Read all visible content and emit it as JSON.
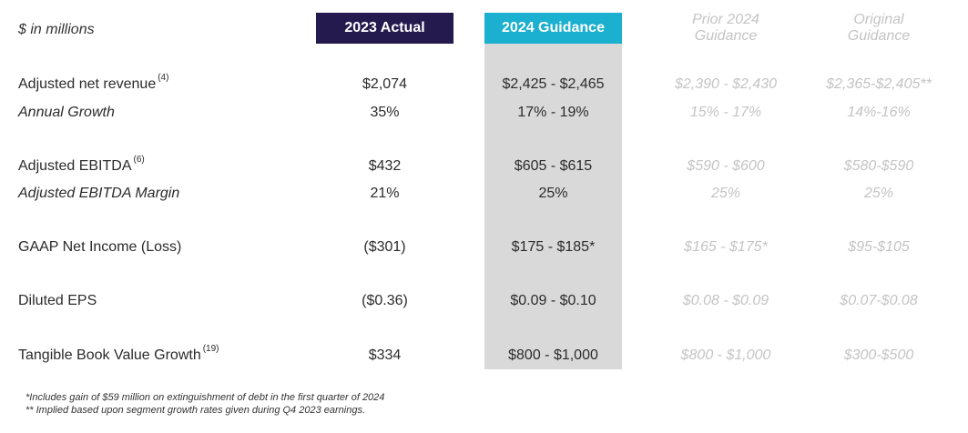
{
  "units_label": "$ in millions",
  "headers": {
    "actual": "2023 Actual",
    "guidance": "2024 Guidance",
    "prior_line1": "Prior 2024",
    "prior_line2": "Guidance",
    "original_line1": "Original",
    "original_line2": "Guidance"
  },
  "rows": [
    {
      "label": "Adjusted net revenue",
      "note": "(4)",
      "actual": "$2,074",
      "guidance": "$2,425 - $2,465",
      "prior": "$2,390 - $2,430",
      "original": "$2,365-$2,405**"
    },
    {
      "label": "Annual Growth",
      "note": "",
      "actual": "35%",
      "guidance": "17% - 19%",
      "prior": "15% - 17%",
      "original": "14%-16%"
    },
    {
      "label": "Adjusted EBITDA",
      "note": "(6)",
      "actual": "$432",
      "guidance": "$605 - $615",
      "prior": "$590 - $600",
      "original": "$580-$590"
    },
    {
      "label": "Adjusted EBITDA Margin",
      "note": "",
      "actual": "21%",
      "guidance": "25%",
      "prior": "25%",
      "original": "25%"
    },
    {
      "label": "GAAP Net Income (Loss)",
      "note": "",
      "actual": "($301)",
      "guidance": "$175 - $185*",
      "prior": "$165 - $175*",
      "original": "$95-$105"
    },
    {
      "label": "Diluted EPS",
      "note": "",
      "actual": "($0.36)",
      "guidance": "$0.09 - $0.10",
      "prior": "$0.08 - $0.09",
      "original": "$0.07-$0.08"
    },
    {
      "label": "Tangible Book Value Growth",
      "note": "(19)",
      "actual": "$334",
      "guidance": "$800 - $1,000",
      "prior": "$800 - $1,000",
      "original": "$300-$500"
    }
  ],
  "footnotes": [
    "*Includes gain of $59 million on extinguishment of debt in the first quarter of 2024",
    "** Implied based upon segment growth rates given during Q4 2023 earnings."
  ],
  "colors": {
    "actual_header_bg": "#251a4e",
    "guidance_header_bg": "#1bb0cf",
    "guidance_column_bg": "#d9d9d9",
    "muted_text": "#c4c4c4"
  }
}
